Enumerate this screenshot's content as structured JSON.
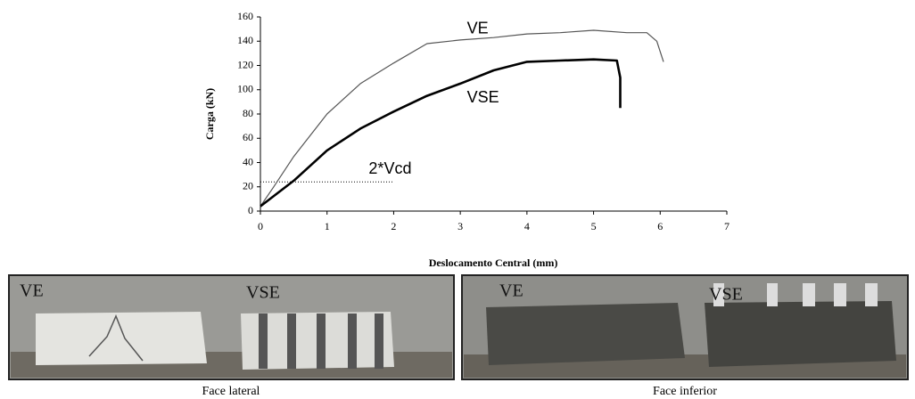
{
  "chart_data": {
    "type": "line",
    "xlabel": "Deslocamento Central (mm)",
    "ylabel": "Carga (kN)",
    "xlim": [
      0,
      7
    ],
    "ylim": [
      0,
      160
    ],
    "xticks": [
      0,
      1,
      2,
      3,
      4,
      5,
      6,
      7
    ],
    "yticks": [
      0,
      20,
      40,
      60,
      80,
      100,
      120,
      140,
      160
    ],
    "series": [
      {
        "name": "VE",
        "color": "#555555",
        "x": [
          0,
          0.2,
          0.5,
          1,
          1.5,
          2,
          2.5,
          3,
          3.5,
          4,
          4.5,
          5,
          5.5,
          5.8,
          5.95,
          6.05
        ],
        "values": [
          4,
          20,
          45,
          80,
          105,
          122,
          138,
          141,
          143,
          146,
          147,
          149,
          147,
          147,
          140,
          123
        ]
      },
      {
        "name": "VSE",
        "color": "#000000",
        "x": [
          0,
          0.5,
          1,
          1.5,
          2,
          2.5,
          3,
          3.5,
          4,
          4.5,
          5,
          5.35,
          5.4,
          5.4
        ],
        "values": [
          4,
          25,
          50,
          68,
          82,
          95,
          105,
          116,
          123,
          124,
          125,
          124,
          110,
          85
        ]
      }
    ],
    "reference_line": {
      "label": "2*Vcd",
      "y": 24,
      "x": [
        0,
        2
      ]
    }
  },
  "photos": [
    {
      "labels": [
        "VE",
        "VSE"
      ],
      "caption": "Face lateral"
    },
    {
      "labels": [
        "VE",
        "VSE"
      ],
      "caption": "Face inferior"
    }
  ]
}
